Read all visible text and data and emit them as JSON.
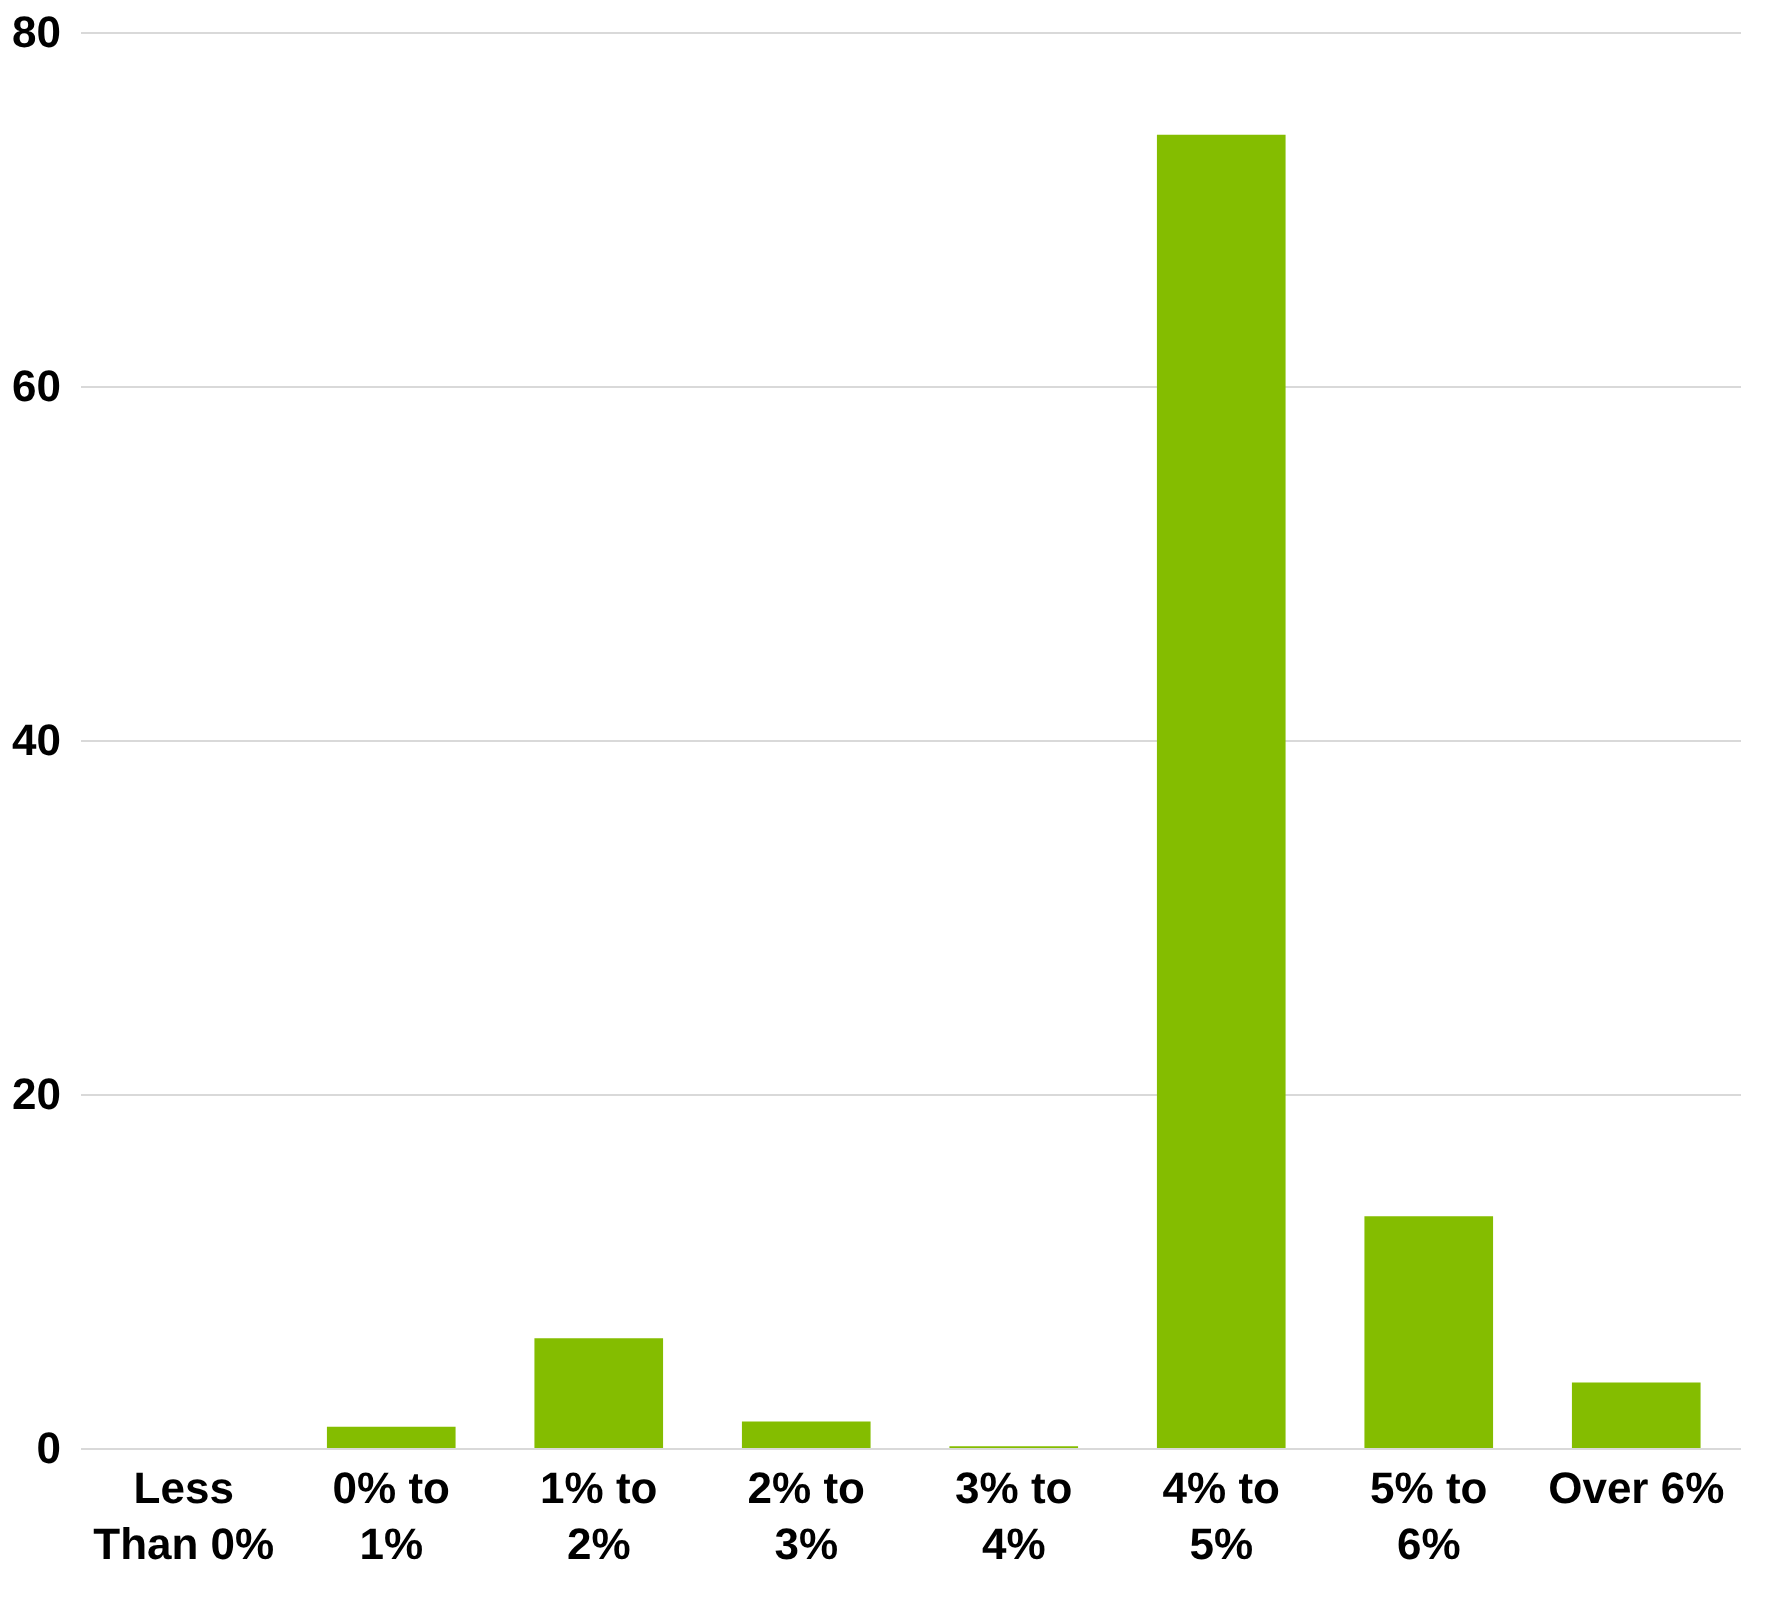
{
  "chart_data": {
    "type": "bar",
    "categories": [
      "Less Than 0%",
      "0% to 1%",
      "1% to 2%",
      "2% to 3%",
      "3% to 4%",
      "4% to 5%",
      "5% to 6%",
      "Over 6%"
    ],
    "values": [
      0,
      1.2,
      6.2,
      1.5,
      0.1,
      74.2,
      13.1,
      3.7
    ],
    "color": "#84bd00",
    "ylim": [
      0,
      80
    ],
    "yticks": [
      0,
      20,
      40,
      60,
      80
    ],
    "grid": "y"
  }
}
